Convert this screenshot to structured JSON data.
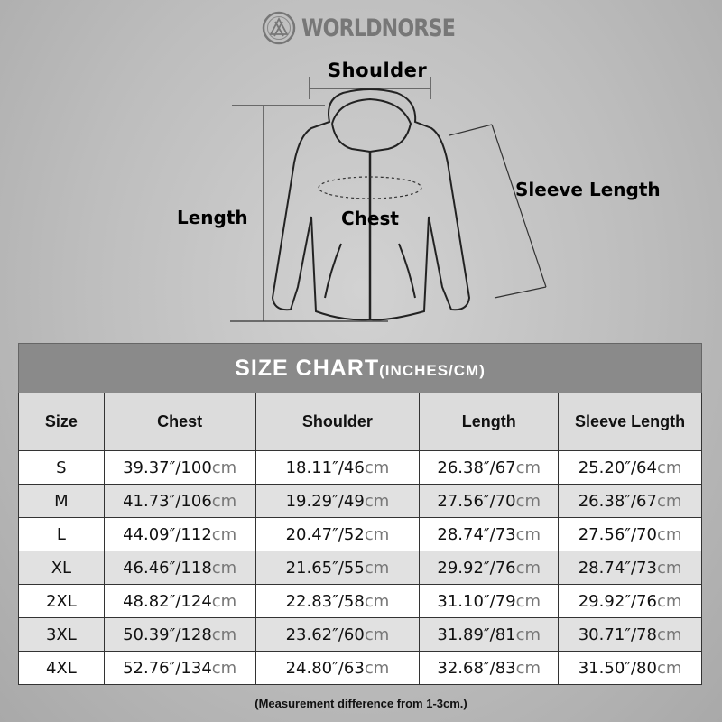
{
  "brand": {
    "name": "WORLDNORSE",
    "logo_icon": "valknut-knot-icon"
  },
  "diagram": {
    "labels": {
      "shoulder": "Shoulder",
      "length": "Length",
      "chest": "Chest",
      "sleeve_length": "Sleeve Length"
    }
  },
  "table": {
    "title": "SIZE CHART",
    "title_units": "(INCHES/CM)",
    "headers": [
      "Size",
      "Chest",
      "Shoulder",
      "Length",
      "Sleeve Length"
    ],
    "rows": [
      {
        "size": "S",
        "chest": "39.37″/100",
        "shoulder": "18.11″/46",
        "length": "26.38″/67",
        "sleeve": "25.20″/64"
      },
      {
        "size": "M",
        "chest": "41.73″/106",
        "shoulder": "19.29″/49",
        "length": "27.56″/70",
        "sleeve": "26.38″/67"
      },
      {
        "size": "L",
        "chest": "44.09″/112",
        "shoulder": "20.47″/52",
        "length": "28.74″/73",
        "sleeve": "27.56″/70"
      },
      {
        "size": "XL",
        "chest": "46.46″/118",
        "shoulder": "21.65″/55",
        "length": "29.92″/76",
        "sleeve": "28.74″/73"
      },
      {
        "size": "2XL",
        "chest": "48.82″/124",
        "shoulder": "22.83″/58",
        "length": "31.10″/79",
        "sleeve": "29.92″/76"
      },
      {
        "size": "3XL",
        "chest": "50.39″/128",
        "shoulder": "23.62″/60",
        "length": "31.89″/81",
        "sleeve": "30.71″/78"
      },
      {
        "size": "4XL",
        "chest": "52.76″/134",
        "shoulder": "24.80″/63",
        "length": "32.68″/83",
        "sleeve": "31.50″/80"
      }
    ],
    "unit_suffix": "cm"
  },
  "note": "(Measurement difference from 1-3cm.)"
}
